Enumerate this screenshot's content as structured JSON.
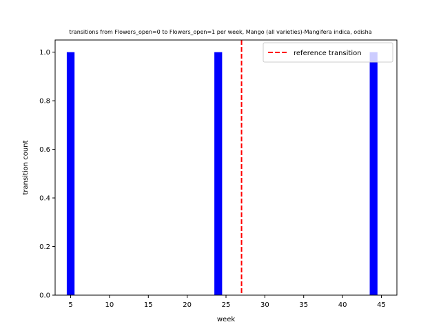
{
  "chart_data": {
    "type": "bar",
    "title": "transitions from Flowers_open=0 to Flowers_open=1 per week, Mango (all varieties)-Mangifera indica, odisha",
    "xlabel": "week",
    "ylabel": "transition count",
    "x": [
      5,
      24,
      44
    ],
    "values": [
      1,
      1,
      1
    ],
    "bar_width_weeks": 1,
    "xlim": [
      3,
      47
    ],
    "ylim": [
      0,
      1.05
    ],
    "xticks": [
      5,
      10,
      15,
      20,
      25,
      30,
      35,
      40,
      45
    ],
    "yticks": [
      0.0,
      0.2,
      0.4,
      0.6,
      0.8,
      1.0
    ],
    "ytick_labels": [
      "0.0",
      "0.2",
      "0.4",
      "0.6",
      "0.8",
      "1.0"
    ],
    "reference_line": {
      "x": 27,
      "label": "reference transition",
      "color": "#ff0000",
      "style": "dashed"
    },
    "bar_color": "#0000ff",
    "legend": {
      "entries": [
        "reference transition"
      ],
      "placement": "top-right"
    },
    "grid": false
  }
}
